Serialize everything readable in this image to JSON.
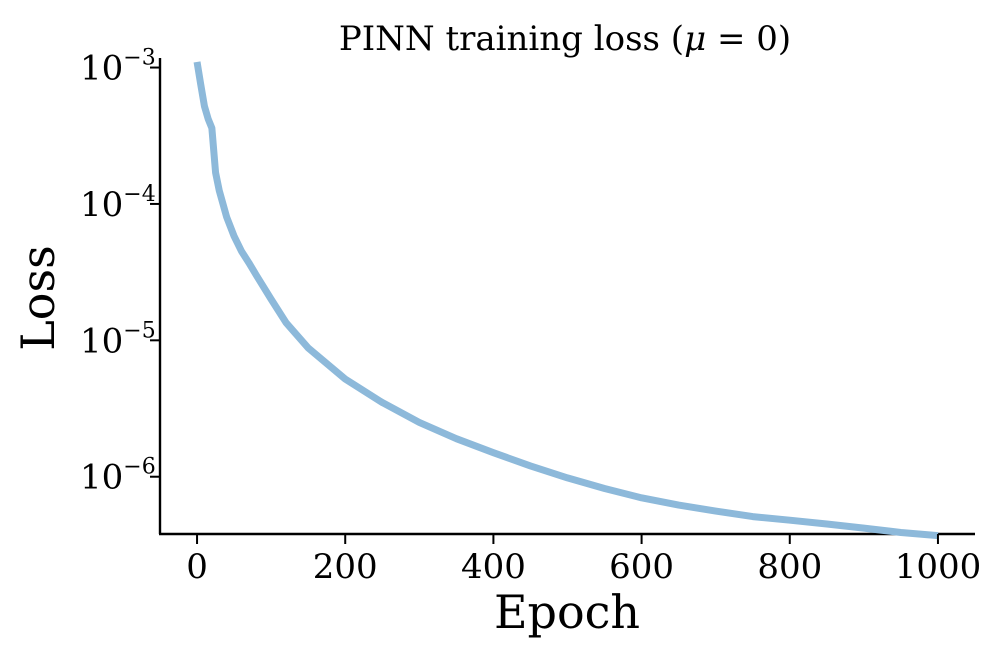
{
  "chart_data": {
    "type": "line",
    "title": "PINN training loss (",
    "title_mu": "μ",
    "title_eq": " = 0)",
    "xlabel": "Epoch",
    "ylabel": "Loss",
    "x_scale": "linear",
    "y_scale": "log",
    "xlim": [
      -50,
      1050
    ],
    "ylim_log10": [
      -6.42,
      -2.93
    ],
    "x_ticks": [
      0,
      200,
      400,
      600,
      800,
      1000
    ],
    "x_tick_labels": [
      "0",
      "200",
      "400",
      "600",
      "800",
      "1000"
    ],
    "y_ticks_log10": [
      -3,
      -4,
      -5,
      -6
    ],
    "y_tick_base": "10",
    "y_tick_exponents": [
      "−3",
      "−4",
      "−5",
      "−6"
    ],
    "grid": false,
    "line_color": "#8db9da",
    "series": [
      {
        "name": "loss",
        "x": [
          0,
          5,
          10,
          15,
          20,
          25,
          30,
          35,
          40,
          50,
          60,
          70,
          80,
          100,
          120,
          150,
          200,
          250,
          300,
          350,
          400,
          450,
          500,
          550,
          600,
          650,
          700,
          750,
          800,
          850,
          900,
          950,
          1000
        ],
        "y": [
          0.0011,
          0.00075,
          0.00052,
          0.00042,
          0.00036,
          0.00017,
          0.000125,
          0.0001,
          8e-05,
          5.8e-05,
          4.5e-05,
          3.7e-05,
          3e-05,
          2e-05,
          1.35e-05,
          8.8e-06,
          5.2e-06,
          3.5e-06,
          2.5e-06,
          1.9e-06,
          1.5e-06,
          1.2e-06,
          9.8e-07,
          8.2e-07,
          7e-07,
          6.2e-07,
          5.6e-07,
          5.1e-07,
          4.8e-07,
          4.5e-07,
          4.2e-07,
          3.9e-07,
          3.7e-07
        ]
      }
    ]
  }
}
